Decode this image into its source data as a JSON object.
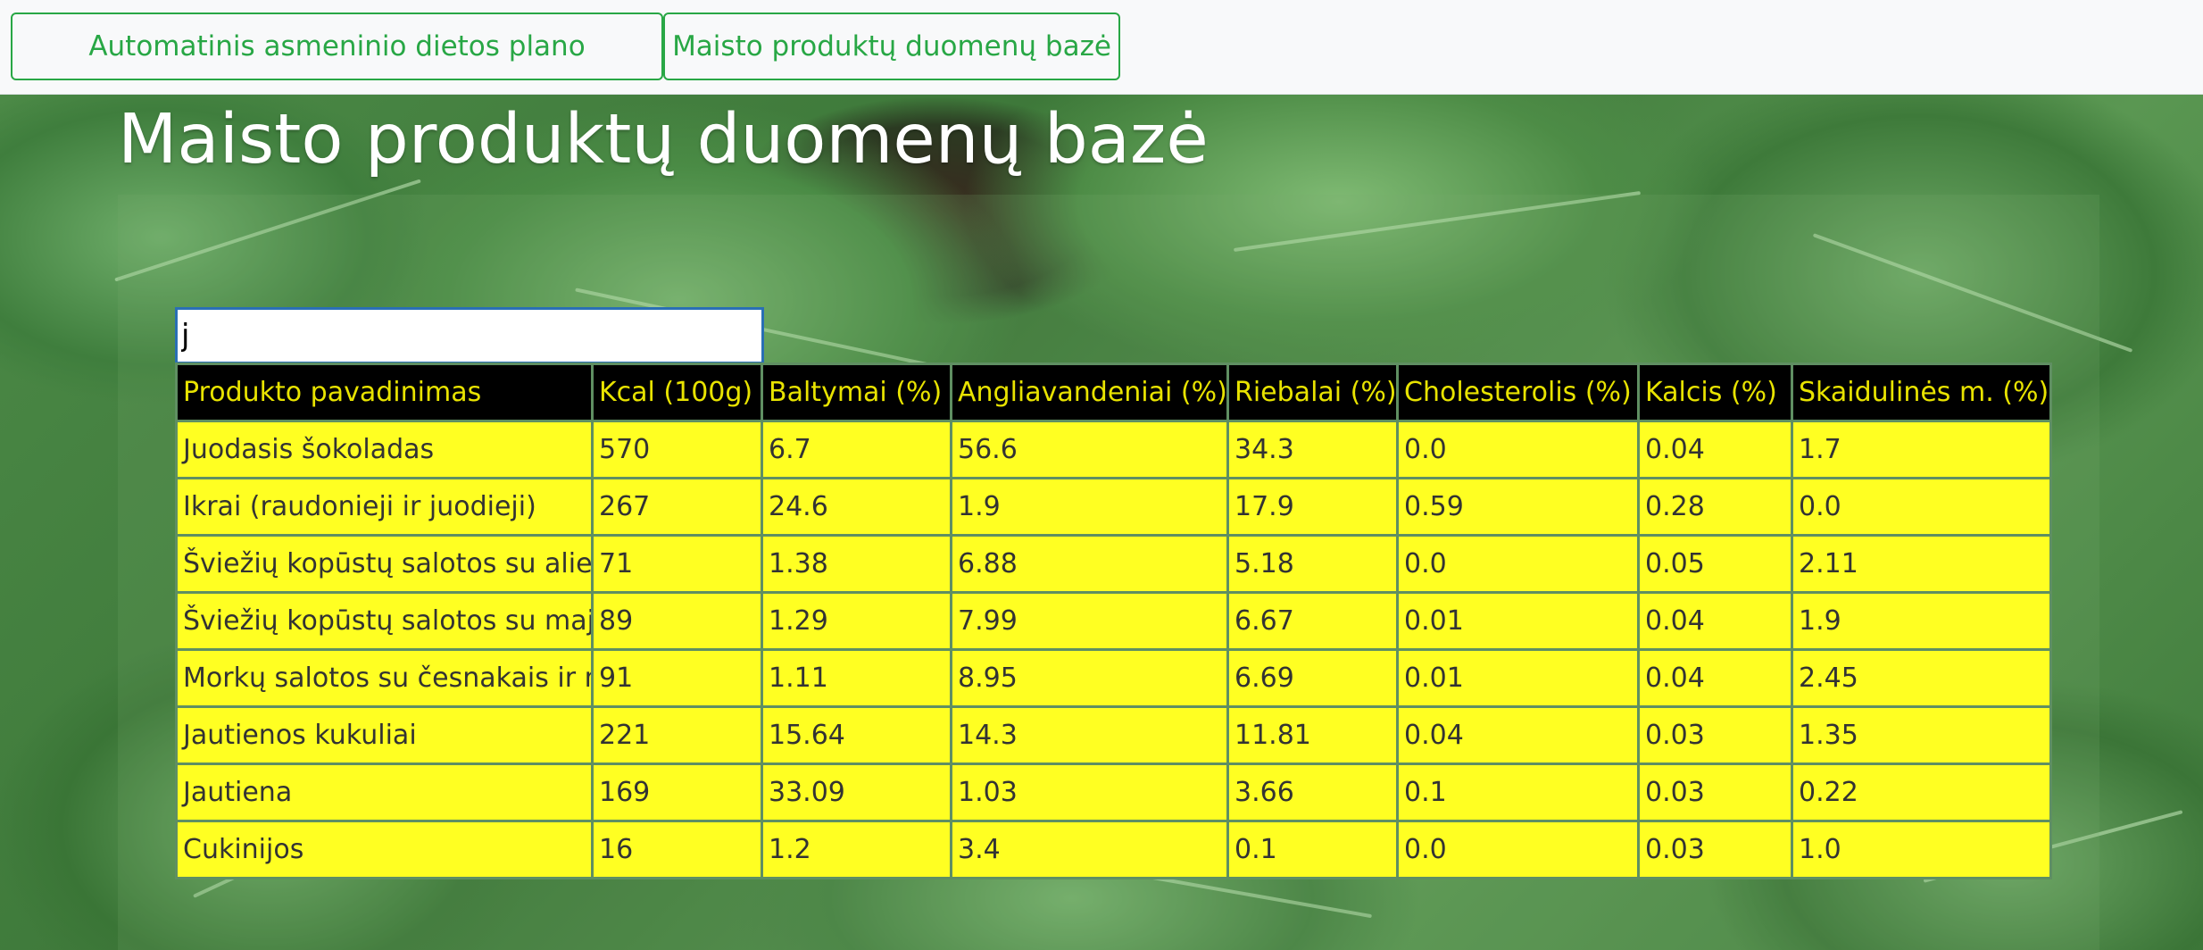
{
  "nav": {
    "items": [
      {
        "label": "Automatinis asmeninio dietos plano sudarymas"
      },
      {
        "label": "Maisto produktų duomenų bazė"
      }
    ]
  },
  "page": {
    "title": "Maisto produktų duomenų bazė"
  },
  "search": {
    "value": "j",
    "placeholder": ""
  },
  "table": {
    "headers": [
      "Produkto pavadinimas",
      "Kcal (100g)",
      "Baltymai (%)",
      "Angliavandeniai (%)",
      "Riebalai (%)",
      "Cholesterolis (%)",
      "Kalcis (%)",
      "Skaidulinės m. (%)"
    ],
    "rows": [
      [
        "Juodasis šokoladas",
        "570",
        "6.7",
        "56.6",
        "34.3",
        "0.0",
        "0.04",
        "1.7"
      ],
      [
        "Ikrai (raudonieji ir juodieji)",
        "267",
        "24.6",
        "1.9",
        "17.9",
        "0.59",
        "0.28",
        "0.0"
      ],
      [
        "Šviežių kopūstų salotos su aliejumi",
        "71",
        "1.38",
        "6.88",
        "5.18",
        "0.0",
        "0.05",
        "2.11"
      ],
      [
        "Šviežių kopūstų salotos su majonezu",
        "89",
        "1.29",
        "7.99",
        "6.67",
        "0.01",
        "0.04",
        "1.9"
      ],
      [
        "Morkų salotos su česnakais ir majonezu",
        "91",
        "1.11",
        "8.95",
        "6.69",
        "0.01",
        "0.04",
        "2.45"
      ],
      [
        "Jautienos kukuliai",
        "221",
        "15.64",
        "14.3",
        "11.81",
        "0.04",
        "0.03",
        "1.35"
      ],
      [
        "Jautiena",
        "169",
        "33.09",
        "1.03",
        "3.66",
        "0.1",
        "0.03",
        "0.22"
      ],
      [
        "Cukinijos",
        "16",
        "1.2",
        "3.4",
        "0.1",
        "0.0",
        "0.03",
        "1.0"
      ]
    ]
  },
  "colors": {
    "accent": "#28a745",
    "header_bg": "#000000",
    "header_text": "#e8e300",
    "row_bg": "#ffff22"
  }
}
